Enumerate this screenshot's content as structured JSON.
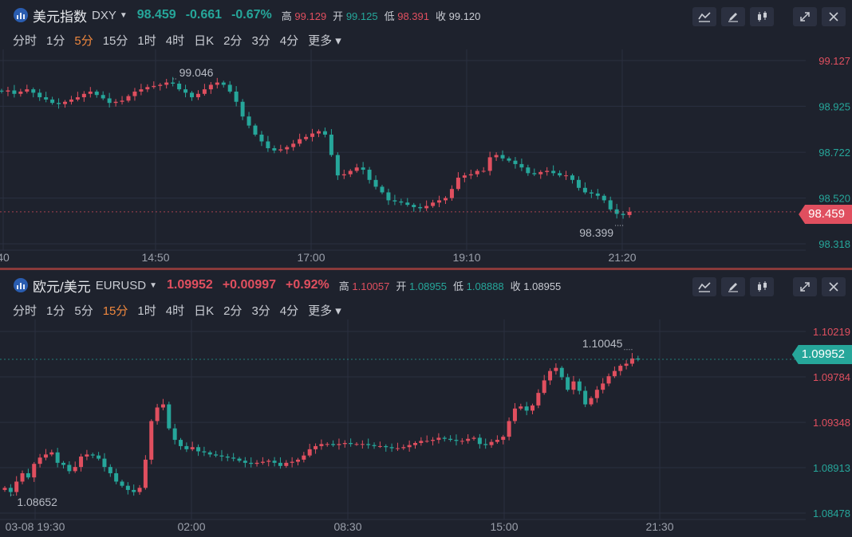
{
  "panels": [
    {
      "title": "美元指数",
      "code": "DXY",
      "price": "98.459",
      "change": "-0.661",
      "change_pct": "-0.67%",
      "high_label": "高",
      "high": "99.129",
      "open_label": "开",
      "open": "99.125",
      "low_label": "低",
      "low": "98.391",
      "close_label": "收",
      "close": "99.120",
      "periods": [
        "分时",
        "1分",
        "5分",
        "15分",
        "1时",
        "4时",
        "日K",
        "2分",
        "3分",
        "4分",
        "更多"
      ],
      "active_period": "5分",
      "price_tag": "98.459",
      "colors": {
        "up": "#e04f5f",
        "down": "#26a69a",
        "tag": "#e04f5f"
      }
    },
    {
      "title": "欧元/美元",
      "code": "EURUSD",
      "price": "1.09952",
      "change": "+0.00997",
      "change_pct": "+0.92%",
      "high_label": "高",
      "high": "1.10057",
      "open_label": "开",
      "open": "1.08955",
      "low_label": "低",
      "low": "1.08888",
      "close_label": "收",
      "close": "1.08955",
      "periods": [
        "分时",
        "1分",
        "5分",
        "15分",
        "1时",
        "4时",
        "日K",
        "2分",
        "3分",
        "4分",
        "更多"
      ],
      "active_period": "15分",
      "price_tag": "1.09952",
      "colors": {
        "up": "#e04f5f",
        "down": "#26a69a",
        "tag": "#26a69a"
      }
    }
  ],
  "chart_data": [
    {
      "type": "candlestick",
      "symbol": "DXY",
      "interval": "5分",
      "x_ticks": [
        "40",
        "14:50",
        "17:00",
        "19:10",
        "21:20"
      ],
      "y_ticks": [
        "99.127",
        "98.925",
        "98.722",
        "98.520",
        "98.318"
      ],
      "ylim": [
        98.318,
        99.127
      ],
      "last_price": 98.459,
      "annotations": [
        {
          "label": "99.046",
          "value": 99.046
        },
        {
          "label": "98.399",
          "value": 98.399
        }
      ],
      "closes": [
        98.99,
        98.995,
        98.98,
        98.99,
        99.0,
        98.985,
        98.965,
        98.955,
        98.94,
        98.935,
        98.945,
        98.955,
        98.965,
        98.98,
        98.99,
        98.975,
        98.96,
        98.94,
        98.945,
        98.95,
        98.97,
        98.99,
        99.0,
        99.01,
        99.015,
        99.02,
        99.03,
        99.025,
        99.0,
        98.985,
        98.965,
        98.98,
        99.0,
        99.02,
        99.03,
        99.02,
        98.99,
        98.945,
        98.88,
        98.84,
        98.8,
        98.77,
        98.74,
        98.73,
        98.735,
        98.745,
        98.76,
        98.78,
        98.79,
        98.805,
        98.815,
        98.8,
        98.71,
        98.62,
        98.625,
        98.64,
        98.655,
        98.645,
        98.6,
        98.57,
        98.545,
        98.51,
        98.505,
        98.5,
        98.49,
        98.48,
        98.475,
        98.485,
        98.5,
        98.51,
        98.52,
        98.56,
        98.61,
        98.62,
        98.625,
        98.64,
        98.64,
        98.7,
        98.71,
        98.695,
        98.685,
        98.67,
        98.655,
        98.63,
        98.625,
        98.635,
        98.64,
        98.63,
        98.62,
        98.62,
        98.6,
        98.565,
        98.545,
        98.54,
        98.53,
        98.51,
        98.47,
        98.45,
        98.445,
        98.459
      ]
    },
    {
      "type": "candlestick",
      "symbol": "EURUSD",
      "interval": "15分",
      "x_ticks": [
        "03-08 19:30",
        "02:00",
        "08:30",
        "15:00",
        "21:30"
      ],
      "y_ticks": [
        "1.10219",
        "1.09784",
        "1.09348",
        "1.08913",
        "1.08478"
      ],
      "ylim": [
        1.08478,
        1.10219
      ],
      "last_price": 1.09952,
      "annotations": [
        {
          "label": "1.10045",
          "value": 1.10045
        },
        {
          "label": "1.08652",
          "value": 1.08652
        }
      ],
      "closes": [
        1.0872,
        1.0868,
        1.0878,
        1.0886,
        1.0882,
        1.0895,
        1.0901,
        1.0904,
        1.0906,
        1.0896,
        1.0894,
        1.0888,
        1.0892,
        1.0902,
        1.0904,
        1.0903,
        1.09,
        1.0892,
        1.0886,
        1.0878,
        1.0874,
        1.087,
        1.0868,
        1.0872,
        1.0899,
        1.0936,
        1.0949,
        1.0952,
        1.0929,
        1.0918,
        1.0912,
        1.0909,
        1.0911,
        1.0907,
        1.0906,
        1.0904,
        1.0903,
        1.0902,
        1.0901,
        1.09,
        1.0898,
        1.0896,
        1.0895,
        1.0896,
        1.0897,
        1.0898,
        1.0896,
        1.0893,
        1.0896,
        1.0897,
        1.0899,
        1.0903,
        1.0909,
        1.0912,
        1.0914,
        1.0914,
        1.0913,
        1.0914,
        1.0915,
        1.0914,
        1.0914,
        1.0914,
        1.0913,
        1.0912,
        1.0912,
        1.0911,
        1.091,
        1.091,
        1.0911,
        1.0913,
        1.0915,
        1.0917,
        1.0917,
        1.0918,
        1.092,
        1.0919,
        1.0918,
        1.0917,
        1.0917,
        1.0919,
        1.092,
        1.0914,
        1.0913,
        1.0916,
        1.0918,
        1.0921,
        1.0936,
        1.0948,
        1.095,
        1.0946,
        1.0951,
        1.0963,
        1.0975,
        1.0984,
        1.0987,
        1.0978,
        1.0966,
        1.0974,
        1.0965,
        1.0952,
        1.0958,
        1.0966,
        1.0972,
        1.0979,
        1.0984,
        1.0989,
        1.0991,
        1.0996,
        1.0995
      ]
    }
  ]
}
